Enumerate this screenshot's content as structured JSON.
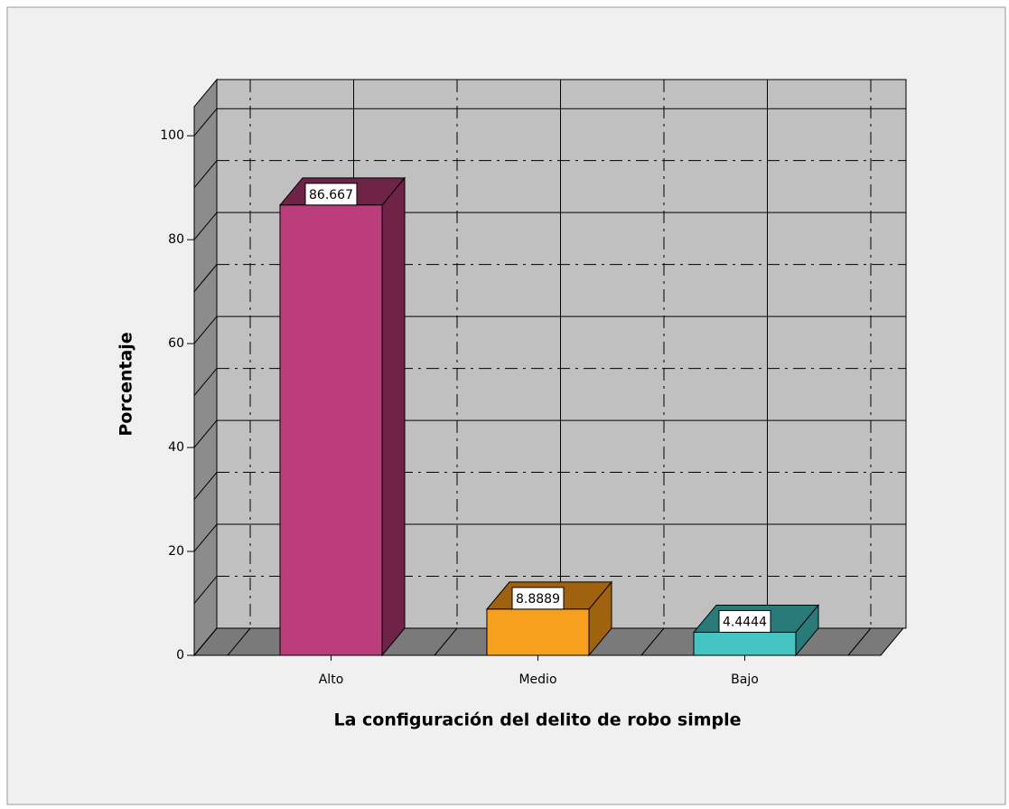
{
  "chart_data": {
    "type": "bar3d",
    "categories": [
      "Alto",
      "Medio",
      "Bajo"
    ],
    "values": [
      86.667,
      8.8889,
      4.4444
    ],
    "colors": [
      "#bc3d7c",
      "#f7a020",
      "#45c4c4"
    ],
    "side_colors": [
      "#6e2347",
      "#a0620f",
      "#2a7a7a"
    ],
    "x_label": "La configuración del delito de robo simple",
    "y_label": "Porcentaje",
    "ylim": [
      0,
      105.6
    ],
    "yticks": [
      0,
      20,
      40,
      60,
      80,
      100
    ],
    "grid": true
  }
}
